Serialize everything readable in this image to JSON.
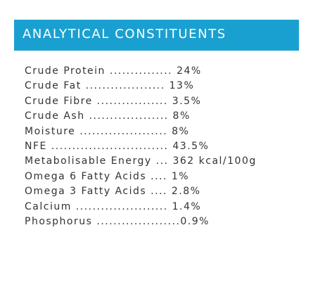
{
  "header": {
    "title": "ANALYTICAL CONSTITUENTS"
  },
  "colors": {
    "header_bg": "#1aa0d0",
    "header_text": "#ffffff",
    "body_text": "#333333"
  },
  "constituents": [
    "Crude Protein ............... 24%",
    "Crude Fat ................... 13%",
    "Crude Fibre ................. 3.5%",
    "Crude Ash ................... 8%",
    "Moisture ..................... 8%",
    "NFE ............................ 43.5%",
    "Metabolisable Energy ... 362 kcal/100g",
    "Omega 6 Fatty Acids .... 1%",
    "Omega 3 Fatty Acids .... 2.8%",
    "Calcium ...................... 1.4%",
    "Phosphorus ....................0.9%"
  ]
}
